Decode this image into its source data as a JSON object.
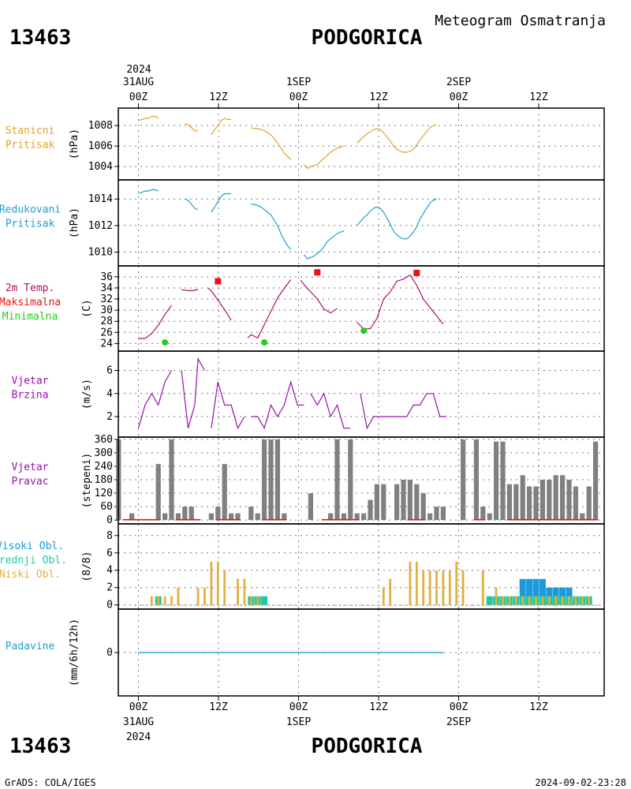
{
  "header": {
    "station_id": "13463",
    "station_name": "PODGORICA",
    "subtitle": "Meteogram Osmatranja"
  },
  "footer": {
    "credit": "GrADS: COLA/IGES",
    "timestamp": "2024-09-02-23:28"
  },
  "time_axis": {
    "start_year": "2024",
    "top_ticks": [
      {
        "day": "31AUG",
        "hour": "00Z"
      },
      {
        "day": "",
        "hour": "12Z"
      },
      {
        "day": "1SEP",
        "hour": "00Z"
      },
      {
        "day": "",
        "hour": "12Z"
      },
      {
        "day": "2SEP",
        "hour": "00Z"
      },
      {
        "day": "",
        "hour": "12Z"
      }
    ],
    "bottom_ticks": [
      {
        "hour": "00Z",
        "day": "31AUG",
        "year": "2024"
      },
      {
        "hour": "12Z",
        "day": "",
        "year": ""
      },
      {
        "hour": "00Z",
        "day": "1SEP",
        "year": ""
      },
      {
        "hour": "12Z",
        "day": "",
        "year": ""
      },
      {
        "hour": "00Z",
        "day": "2SEP",
        "year": ""
      },
      {
        "hour": "12Z",
        "day": "",
        "year": ""
      }
    ]
  },
  "colors": {
    "station_pressure": "#e0a030",
    "reduced_pressure": "#20a0d0",
    "temperature": "#b0106a",
    "maximum": "#ee1111",
    "minimum": "#22cc22",
    "wind_speed": "#9b10b0",
    "wind_direction_bar": "#808080",
    "wind_direction_calm": "#cc2222",
    "cloud_high": "#1a9ad8",
    "cloud_mid": "#20c8a0",
    "cloud_low": "#e0b040",
    "precipitation": "#20a0d0"
  },
  "chart_data": [
    {
      "id": "station_pressure",
      "type": "line",
      "title_lines": [
        "Stanicni",
        "Pritisak"
      ],
      "ylabel": "(hPa)",
      "ylim": [
        1003,
        1009.4
      ],
      "yticks": [
        1004,
        1006,
        1008
      ],
      "series": [
        {
          "x": [
            0.0,
            0.5,
            1.0,
            1.5,
            2.0,
            2.5,
            3.0,
            null,
            7.0,
            7.5,
            8.0,
            8.5,
            9.0,
            null,
            11.0,
            11.5,
            12.0,
            12.5,
            13.0,
            13.5,
            14.0,
            null,
            17.0,
            17.5,
            18.0,
            18.5,
            19.0,
            19.5,
            20.0,
            20.5,
            21.0,
            21.5,
            22.0,
            22.5,
            23.0,
            null,
            25.0,
            25.5,
            26.0,
            26.5,
            27.0,
            27.5,
            28.0,
            28.5,
            29.0,
            29.5,
            30.0,
            30.5,
            31.0,
            null,
            33.0,
            33.5,
            34.0,
            34.5,
            35.0,
            35.5,
            36.0,
            36.5,
            37.0,
            37.5,
            38.0,
            38.5,
            39.0,
            39.5,
            40.0,
            40.5,
            41.0,
            41.5,
            42.0,
            42.5,
            43.0,
            43.5,
            44.0,
            44.5,
            45.0
          ],
          "y": [
            1008.5,
            1008.6,
            1008.7,
            1008.7,
            1008.9,
            1008.9,
            1008.7,
            null,
            1008.2,
            1008.1,
            1007.8,
            1007.5,
            1007.5,
            null,
            1007.1,
            1007.6,
            1008.0,
            1008.5,
            1008.7,
            1008.6,
            1008.6,
            null,
            1007.8,
            1007.7,
            1007.7,
            1007.6,
            1007.5,
            1007.3,
            1007.1,
            1006.7,
            1006.3,
            1005.8,
            1005.3,
            1005.0,
            1004.7,
            null,
            1004.2,
            1003.8,
            1004.0,
            1004.1,
            1004.2,
            1004.5,
            1004.8,
            1005.1,
            1005.4,
            1005.6,
            1005.8,
            1005.9,
            1006.0,
            null,
            1006.3,
            1006.6,
            1006.9,
            1007.2,
            1007.4,
            1007.6,
            1007.7,
            1007.6,
            1007.3,
            1006.9,
            1006.5,
            1006.0,
            1005.7,
            1005.5,
            1005.4,
            1005.4,
            1005.5,
            1005.7,
            1006.1,
            1006.6,
            1007.0,
            1007.4,
            1007.8,
            1008.0,
            1008.1
          ]
        }
      ]
    },
    {
      "id": "reduced_pressure",
      "type": "line",
      "title_lines": [
        "Redukovani",
        "Pritisak"
      ],
      "ylabel": "(hPa)",
      "ylim": [
        1009.2,
        1015.2
      ],
      "yticks": [
        1010,
        1012,
        1014
      ],
      "series": [
        {
          "x": [
            0.0,
            0.5,
            1.0,
            1.5,
            2.0,
            2.5,
            3.0,
            null,
            7.0,
            7.5,
            8.0,
            8.5,
            9.0,
            null,
            11.0,
            11.5,
            12.0,
            12.5,
            13.0,
            13.5,
            14.0,
            null,
            17.0,
            17.5,
            18.0,
            18.5,
            19.0,
            19.5,
            20.0,
            20.5,
            21.0,
            21.5,
            22.0,
            22.5,
            23.0,
            null,
            25.0,
            25.5,
            26.0,
            26.5,
            27.0,
            27.5,
            28.0,
            28.5,
            29.0,
            29.5,
            30.0,
            30.5,
            31.0,
            null,
            33.0,
            33.5,
            34.0,
            34.5,
            35.0,
            35.5,
            36.0,
            36.5,
            37.0,
            37.5,
            38.0,
            38.5,
            39.0,
            39.5,
            40.0,
            40.5,
            41.0,
            41.5,
            42.0,
            42.5,
            43.0,
            43.5,
            44.0,
            44.5,
            45.0
          ],
          "y": [
            1014.4,
            1014.5,
            1014.6,
            1014.6,
            1014.7,
            1014.7,
            1014.6,
            null,
            1014.0,
            1013.9,
            1013.6,
            1013.3,
            1013.2,
            null,
            1013.0,
            1013.4,
            1013.8,
            1014.2,
            1014.4,
            1014.4,
            1014.4,
            null,
            1013.6,
            1013.6,
            1013.5,
            1013.4,
            1013.2,
            1013.0,
            1012.8,
            1012.4,
            1012.0,
            1011.4,
            1010.9,
            1010.5,
            1010.2,
            null,
            1009.8,
            1009.5,
            1009.6,
            1009.7,
            1009.9,
            1010.1,
            1010.4,
            1010.8,
            1011.0,
            1011.2,
            1011.4,
            1011.5,
            1011.6,
            null,
            1012.0,
            1012.3,
            1012.6,
            1012.8,
            1013.1,
            1013.3,
            1013.4,
            1013.3,
            1013.0,
            1012.6,
            1012.1,
            1011.6,
            1011.3,
            1011.1,
            1011.0,
            1011.0,
            1011.2,
            1011.5,
            1011.9,
            1012.5,
            1012.9,
            1013.3,
            1013.7,
            1013.9,
            1014.0
          ]
        }
      ]
    },
    {
      "id": "temperature",
      "type": "line",
      "title_lines": [
        "2m Temp.",
        "Maksimalna",
        "Minimalna"
      ],
      "ylabel": "(C)",
      "ylim": [
        23.2,
        37.4
      ],
      "yticks": [
        24,
        26,
        28,
        30,
        32,
        34,
        36
      ],
      "series": [
        {
          "name": "2m Temp.",
          "x": [
            0.0,
            1.0,
            2.0,
            3.0,
            4.0,
            5.0,
            null,
            6.5,
            7.0,
            8.0,
            9.0,
            null,
            10.5,
            11.0,
            12.0,
            13.0,
            14.0,
            null,
            16.5,
            17.0,
            18.0,
            19.0,
            20.0,
            21.0,
            22.0,
            23.0,
            null,
            24.5,
            25.0,
            26.0,
            27.0,
            28.0,
            29.0,
            30.0,
            31.0,
            null,
            33.0,
            34.0,
            35.0,
            36.0,
            37.0,
            38.0,
            39.0,
            40.0,
            41.0,
            42.0,
            43.0,
            44.0,
            45.0,
            46.0
          ],
          "y": [
            24.9,
            24.9,
            25.8,
            27.3,
            29.2,
            30.9,
            null,
            33.7,
            33.6,
            33.5,
            33.7,
            null,
            34.0,
            33.5,
            31.8,
            30.1,
            28.2,
            null,
            25.0,
            25.6,
            25.0,
            27.4,
            29.8,
            32.2,
            33.9,
            35.5,
            null,
            35.4,
            34.6,
            33.3,
            32.0,
            30.2,
            29.5,
            30.3,
            null,
            null,
            27.8,
            26.6,
            26.7,
            28.5,
            32.0,
            33.3,
            35.2,
            35.6,
            36.3,
            34.5,
            32.0,
            30.5,
            29.0,
            27.5
          ]
        }
      ],
      "maximum": [
        {
          "x": 12.0,
          "y": 35.2
        },
        {
          "x": 27.0,
          "y": 36.8
        },
        {
          "x": 42.0,
          "y": 36.7
        }
      ],
      "minimum": [
        {
          "x": 4.0,
          "y": 24.2
        },
        {
          "x": 19.0,
          "y": 24.2
        },
        {
          "x": 34.0,
          "y": 26.3
        }
      ]
    },
    {
      "id": "wind_speed",
      "type": "line",
      "title_lines": [
        "Vjetar",
        "Brzina"
      ],
      "ylabel": "(m/s)",
      "ylim": [
        0.5,
        7.4
      ],
      "yticks": [
        2,
        4,
        6
      ],
      "series": [
        {
          "x": [
            0,
            1,
            2,
            3,
            4,
            5,
            null,
            6.5,
            7.5,
            8.5,
            9,
            10,
            null,
            11,
            12,
            13,
            14,
            15,
            16,
            null,
            17,
            18,
            19,
            20,
            21,
            22,
            23,
            24,
            25,
            null,
            26,
            27,
            28,
            29,
            30,
            31,
            32,
            null,
            33.5,
            34.5,
            35.5,
            36.5,
            37.5,
            38.5,
            39.5,
            40.5,
            41.5,
            42.5,
            43.5,
            44.5,
            45.5,
            46.5
          ],
          "y": [
            1,
            3,
            4,
            3,
            5,
            6,
            null,
            6,
            1,
            3,
            7,
            6,
            null,
            1,
            5,
            3,
            3,
            1,
            2,
            null,
            2,
            2,
            1,
            3,
            2,
            3,
            5,
            3,
            3,
            null,
            4,
            3,
            4,
            2,
            3,
            1,
            1,
            null,
            4,
            1,
            2,
            2,
            2,
            2,
            2,
            2,
            3,
            3,
            4,
            4,
            2,
            2
          ]
        }
      ]
    },
    {
      "id": "wind_direction",
      "type": "bar",
      "title_lines": [
        "Vjetar",
        "Pravac"
      ],
      "ylabel": "(stepeni)",
      "ylim": [
        -10,
        370
      ],
      "yticks": [
        0,
        60,
        120,
        180,
        240,
        300,
        360
      ],
      "values": [
        360,
        0,
        30,
        0,
        0,
        0,
        250,
        30,
        360,
        30,
        60,
        60,
        0,
        0,
        30,
        60,
        250,
        30,
        30,
        0,
        60,
        30,
        360,
        360,
        360,
        30,
        0,
        0,
        0,
        120,
        0,
        0,
        30,
        360,
        30,
        360,
        30,
        30,
        90,
        160,
        160,
        0,
        160,
        180,
        180,
        160,
        120,
        30,
        60,
        60,
        0,
        0,
        360,
        0,
        360,
        60,
        30,
        350,
        350,
        160,
        160,
        200,
        150,
        150,
        180,
        180,
        200,
        200,
        180,
        150,
        30,
        150,
        350
      ],
      "calm_segments": [
        [
          1,
          6
        ],
        [
          9,
          12
        ],
        [
          15,
          18
        ],
        [
          22,
          25
        ],
        [
          31,
          36
        ],
        [
          44,
          46
        ],
        [
          54,
          55
        ],
        [
          59,
          72
        ]
      ]
    },
    {
      "id": "clouds",
      "type": "bar",
      "title_lines": [
        "Visoki Obl.",
        "Srednji Obl.",
        "Niski Obl."
      ],
      "ylabel": "(8/8)",
      "ylim": [
        -0.3,
        8.8
      ],
      "yticks": [
        0,
        2,
        4,
        6,
        8
      ],
      "series": [
        {
          "name": "Visoki Obl.",
          "values": [
            0,
            0,
            0,
            0,
            0,
            0,
            0,
            0,
            0,
            0,
            0,
            0,
            0,
            0,
            0,
            0,
            0,
            0,
            0,
            0,
            0,
            0,
            0,
            0,
            0,
            0,
            0,
            0,
            0,
            0,
            0,
            0,
            0,
            0,
            0,
            0,
            0,
            0,
            0,
            0,
            0,
            0,
            0,
            0,
            0,
            0,
            0,
            0,
            0,
            0,
            0,
            0,
            0,
            0,
            0,
            0,
            0,
            0,
            0,
            0,
            0,
            3,
            3,
            3,
            3,
            2,
            2,
            2,
            2,
            0,
            0,
            0
          ]
        },
        {
          "name": "Srednji Obl.",
          "values": [
            0,
            0,
            0,
            0,
            0,
            0,
            1,
            0,
            0,
            0,
            0,
            0,
            0,
            0,
            0,
            0,
            0,
            0,
            0,
            0,
            1,
            1,
            1,
            0,
            0,
            0,
            0,
            0,
            0,
            0,
            0,
            0,
            0,
            0,
            0,
            0,
            0,
            0,
            0,
            0,
            0,
            0,
            0,
            0,
            0,
            0,
            0,
            0,
            0,
            0,
            0,
            0,
            0,
            0,
            0,
            0,
            1,
            1,
            1,
            1,
            1,
            1,
            1,
            1,
            1,
            1,
            1,
            1,
            1,
            1,
            1,
            1
          ]
        },
        {
          "name": "Niski Obl.",
          "values": [
            0,
            0,
            0,
            0,
            0,
            1,
            1,
            1,
            1,
            2,
            0,
            0,
            2,
            2,
            5,
            5,
            4,
            0,
            3,
            3,
            1,
            1,
            0,
            0,
            0,
            0,
            0,
            0,
            0,
            0,
            0,
            0,
            0,
            0,
            0,
            0,
            0,
            0,
            0,
            0,
            2,
            3,
            0,
            0,
            5,
            5,
            4,
            4,
            4,
            4,
            4,
            5,
            4,
            0,
            0,
            4,
            0,
            2,
            1,
            1,
            1,
            1,
            1,
            1,
            1,
            1,
            1,
            1,
            1,
            1,
            1,
            1
          ]
        }
      ]
    },
    {
      "id": "precipitation",
      "type": "line",
      "title_lines": [
        "Padavine"
      ],
      "ylabel": "(mm/6h/12h)",
      "ylim": [
        -5,
        5
      ],
      "yticks": [
        0
      ],
      "series": [
        {
          "x": [
            0,
            46
          ],
          "y": [
            0,
            0
          ]
        }
      ]
    }
  ]
}
